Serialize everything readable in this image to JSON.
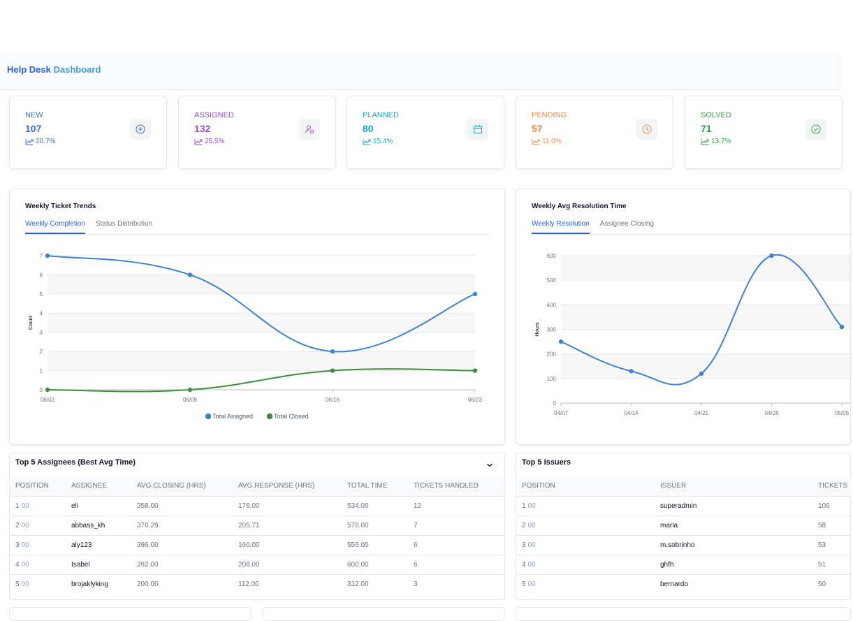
{
  "header": {
    "title_part1": "Help Desk",
    "title_part2": "Dashboard"
  },
  "stats": [
    {
      "label": "NEW",
      "value": "107",
      "pct": "20.7%",
      "color": "#3b6fd4",
      "icon": "plus-circle-icon"
    },
    {
      "label": "ASSIGNED",
      "value": "132",
      "pct": "25.5%",
      "color": "#9b4bd1",
      "icon": "user-assign-icon"
    },
    {
      "label": "PLANNED",
      "value": "80",
      "pct": "15.4%",
      "color": "#16a6c9",
      "icon": "calendar-icon"
    },
    {
      "label": "PENDING",
      "value": "57",
      "pct": "11.0%",
      "color": "#f0883e",
      "icon": "clock-icon"
    },
    {
      "label": "SOLVED",
      "value": "71",
      "pct": "13.7%",
      "color": "#2f9e44",
      "icon": "check-circle-icon"
    }
  ],
  "trends": {
    "title": "Weekly Ticket Trends",
    "tabs": [
      "Weekly Completion",
      "Status Distribution"
    ]
  },
  "resolution": {
    "title": "Weekly Avg Resolution Time",
    "tabs": [
      "Weekly Resolution",
      "Assignee Closing"
    ]
  },
  "chart_data": [
    {
      "type": "line",
      "x": [
        "06/02",
        "06/09",
        "06/16",
        "06/23"
      ],
      "series": [
        {
          "name": "Total Assigned",
          "values": [
            7,
            6,
            2,
            5
          ],
          "color": "#3b82d6"
        },
        {
          "name": "Total Closed",
          "values": [
            0,
            0,
            1,
            1
          ],
          "color": "#3a8f3f"
        }
      ],
      "xlabel": "",
      "ylabel": "Count",
      "ylim": [
        0,
        7
      ],
      "yticks": [
        "0",
        "1",
        "2",
        "3",
        "4",
        "5",
        "6",
        "7"
      ],
      "legend": "bottom",
      "grid": true
    },
    {
      "type": "line",
      "x": [
        "04/07",
        "04/14",
        "04/21",
        "04/28",
        "05/05"
      ],
      "series": [
        {
          "values": [
            250,
            130,
            120,
            600,
            310
          ],
          "color": "#3b82d6"
        }
      ],
      "xlabel": "",
      "ylabel": "Hours",
      "ylim": [
        0,
        600
      ],
      "yticks": [
        "0",
        "100",
        "200",
        "300",
        "400",
        "500",
        "600"
      ],
      "legend": "none",
      "grid": true
    }
  ],
  "assignees": {
    "title": "Top 5 Assignees (Best Avg Time)",
    "columns": [
      "POSITION",
      "ASSIGNEE",
      "AVG.CLOSING (HRS)",
      "AVG.RESPONSE (HRS)",
      "TOTAL TIME",
      "TICKETS HANDLED"
    ],
    "rows": [
      {
        "rank": "1",
        "suffix": "00",
        "name": "eli",
        "closing": "358.00",
        "response": "176.00",
        "total": "534.00",
        "tickets": "12"
      },
      {
        "rank": "2",
        "suffix": "00",
        "name": "abbass_kh",
        "closing": "370.29",
        "response": "205.71",
        "total": "576.00",
        "tickets": "7"
      },
      {
        "rank": "3",
        "suffix": "00",
        "name": "aly123",
        "closing": "396.00",
        "response": "160.00",
        "total": "556.00",
        "tickets": "6"
      },
      {
        "rank": "4",
        "suffix": "00",
        "name": "Isabel",
        "closing": "392.00",
        "response": "208.00",
        "total": "600.00",
        "tickets": "6"
      },
      {
        "rank": "5",
        "suffix": "00",
        "name": "brojaklyking",
        "closing": "200.00",
        "response": "112.00",
        "total": "312.00",
        "tickets": "3"
      }
    ]
  },
  "issuers": {
    "title": "Top 5 Issuers",
    "columns": [
      "POSITION",
      "ISSUER",
      "TICKETS"
    ],
    "rows": [
      {
        "rank": "1",
        "suffix": "00",
        "name": "superadmin",
        "tickets": "106"
      },
      {
        "rank": "2",
        "suffix": "00",
        "name": "maria",
        "tickets": "58"
      },
      {
        "rank": "3",
        "suffix": "00",
        "name": "m.sobrinho",
        "tickets": "53"
      },
      {
        "rank": "4",
        "suffix": "00",
        "name": "ghfh",
        "tickets": "51"
      },
      {
        "rank": "5",
        "suffix": "00",
        "name": "bernardo",
        "tickets": "50"
      }
    ]
  }
}
